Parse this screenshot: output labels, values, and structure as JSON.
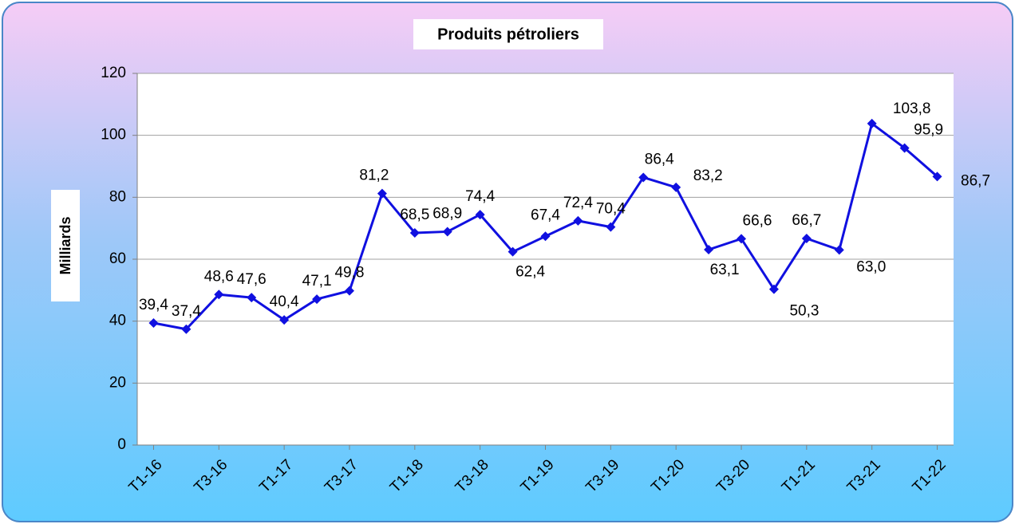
{
  "chart_data": {
    "type": "line",
    "title": "Produits pétroliers",
    "y_label": "Milliards",
    "categories": [
      "T1-16",
      null,
      "T3-16",
      null,
      "T1-17",
      null,
      "T3-17",
      null,
      "T1-18",
      null,
      "T3-18",
      null,
      "T1-19",
      null,
      "T3-19",
      null,
      "T1-20",
      null,
      "T3-20",
      null,
      "T1-21",
      null,
      "T3-21",
      null,
      "T1-22"
    ],
    "series": [
      {
        "name": "Produits pétroliers",
        "color": "#1010e0",
        "values": [
          39.4,
          37.4,
          48.6,
          47.6,
          40.4,
          47.1,
          49.8,
          81.2,
          68.5,
          68.9,
          74.4,
          62.4,
          67.4,
          72.4,
          70.4,
          86.4,
          83.2,
          63.1,
          66.6,
          50.3,
          66.7,
          63.0,
          103.8,
          95.9,
          86.7
        ],
        "value_labels": [
          "39,4",
          "37,4",
          "48,6",
          "47,6",
          "40,4",
          "47,1",
          "49,8",
          "81,2",
          "68,5",
          "68,9",
          "74,4",
          "62,4",
          "67,4",
          "72,4",
          "70,4",
          "86,4",
          "83,2",
          "63,1",
          "66,6",
          "50,3",
          "66,7",
          "63,0",
          "103,8",
          "95,9",
          "86,7"
        ]
      }
    ],
    "ylim": [
      0,
      120
    ],
    "yticks": [
      0,
      20,
      40,
      60,
      80,
      100,
      120
    ],
    "grid": true
  }
}
